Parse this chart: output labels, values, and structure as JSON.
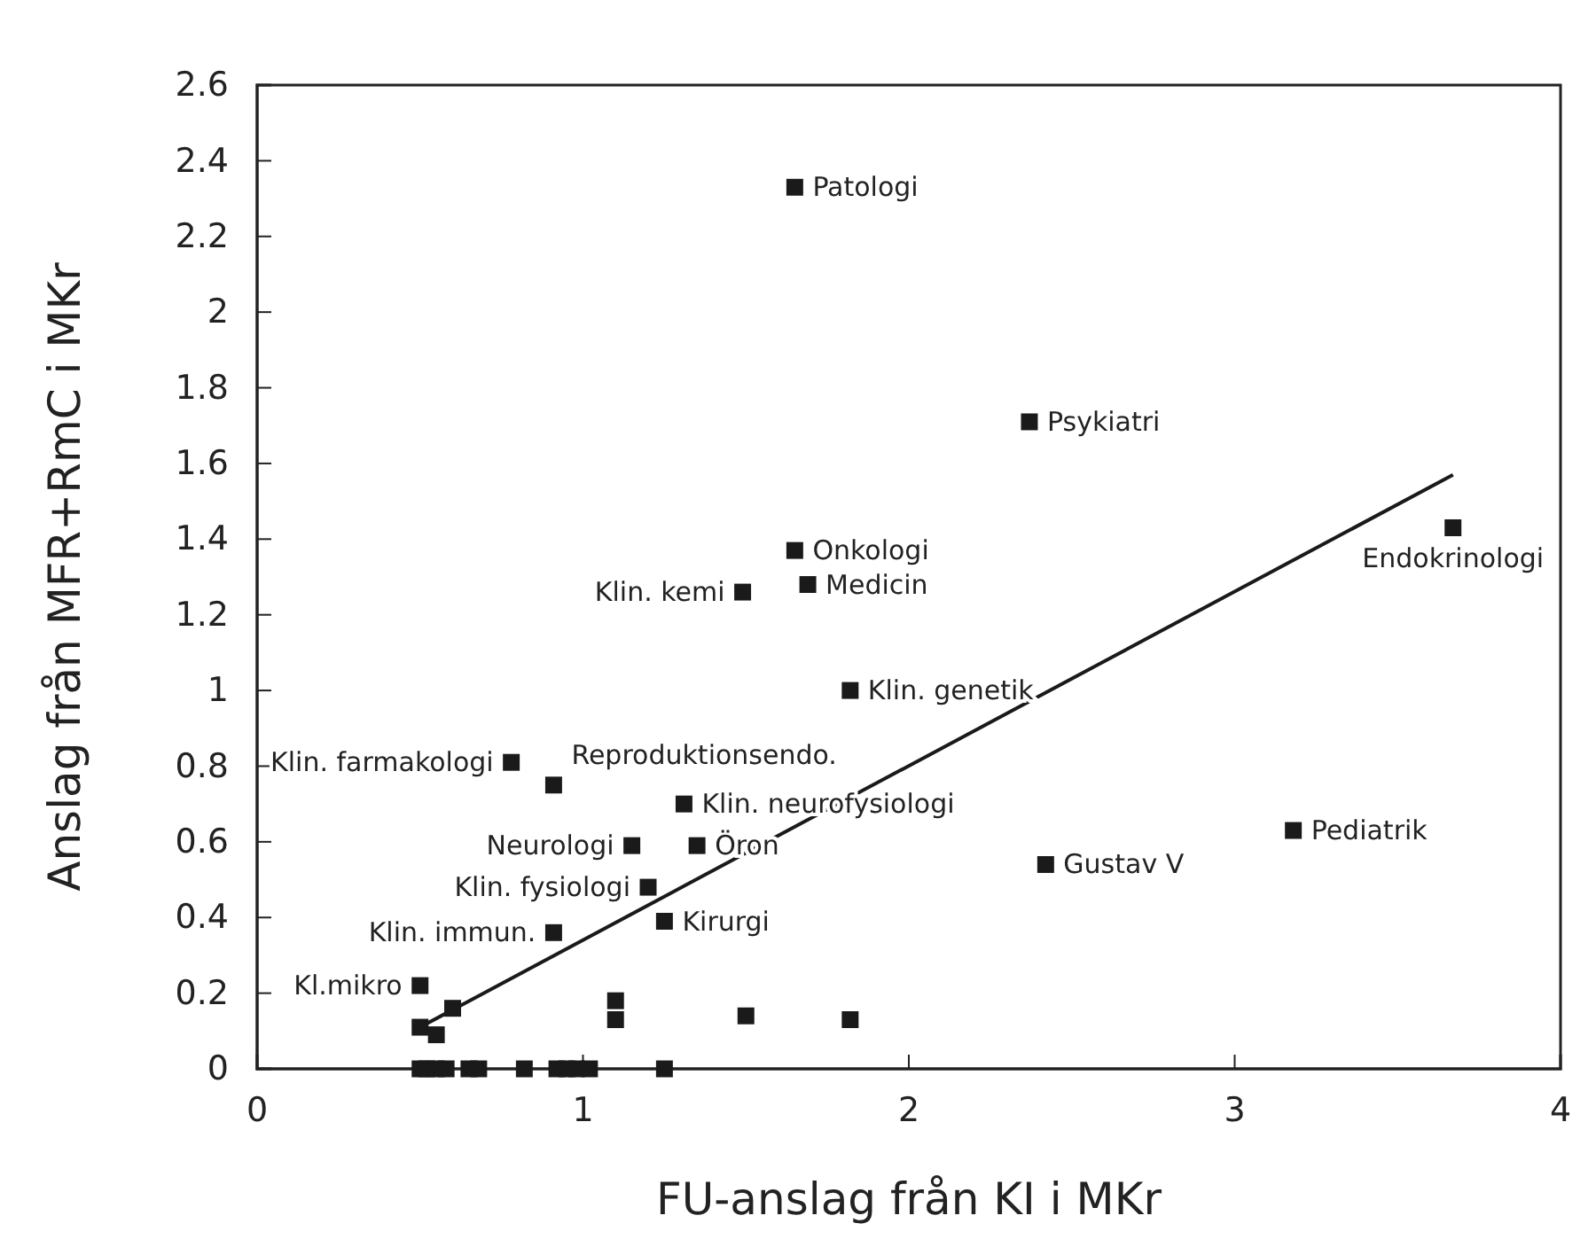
{
  "chart_data": {
    "type": "scatter",
    "xlabel": "FU-anslag från KI i MKr",
    "ylabel": "Anslag från MFR+RmC i MKr",
    "xlim": [
      0,
      4
    ],
    "xticks": [
      0,
      1,
      2,
      3,
      4
    ],
    "ylim": [
      0,
      2.6
    ],
    "yticks": [
      0,
      0.2,
      0.4,
      0.6,
      0.8,
      1,
      1.2,
      1.4,
      1.6,
      1.8,
      2,
      2.2,
      2.4,
      2.6
    ],
    "grid": false,
    "series": [
      {
        "marker": "square",
        "color": "#1a1a1a",
        "x": [
          1.65,
          2.37,
          3.67,
          3.18,
          2.42,
          1.65,
          1.69,
          1.49,
          1.82,
          0.78,
          0.91,
          1.31,
          1.15,
          1.35,
          1.2,
          1.25,
          0.91,
          0.5,
          0.5,
          0.55,
          0.6,
          1.1,
          1.1,
          1.5,
          1.82,
          0.5,
          0.52,
          0.55,
          0.58,
          0.65,
          0.68,
          0.82,
          0.92,
          0.95,
          0.98,
          1.02,
          1.25
        ],
        "values": [
          2.33,
          1.71,
          1.43,
          0.63,
          0.54,
          1.37,
          1.28,
          1.26,
          1.0,
          0.81,
          0.75,
          0.7,
          0.59,
          0.59,
          0.48,
          0.39,
          0.36,
          0.22,
          0.11,
          0.09,
          0.16,
          0.18,
          0.13,
          0.14,
          0.13,
          0,
          0,
          0,
          0,
          0,
          0,
          0,
          0,
          0,
          0,
          0,
          0
        ]
      },
      {
        "type": "line",
        "color": "#1a1a1a",
        "x": [
          0.5,
          3.67
        ],
        "values": [
          0.11,
          1.57
        ]
      }
    ],
    "annotations": [
      {
        "text": "Patologi",
        "x": 1.65,
        "y": 2.33
      },
      {
        "text": "Psykiatri",
        "x": 2.37,
        "y": 1.71
      },
      {
        "text": "Endokrinologi",
        "x": 3.67,
        "y": 1.43
      },
      {
        "text": "Pediatrik",
        "x": 3.18,
        "y": 0.63
      },
      {
        "text": "Gustav V",
        "x": 2.42,
        "y": 0.54
      },
      {
        "text": "Onkologi",
        "x": 1.65,
        "y": 1.37
      },
      {
        "text": "Medicin",
        "x": 1.69,
        "y": 1.28
      },
      {
        "text": "Klin. kemi",
        "x": 1.49,
        "y": 1.26
      },
      {
        "text": "Klin. genetik",
        "x": 1.82,
        "y": 1.0
      },
      {
        "text": "Klin. farmakologi",
        "x": 0.78,
        "y": 0.81
      },
      {
        "text": "Reproduktionsendo.",
        "x": 0.91,
        "y": 0.75
      },
      {
        "text": "Klin. neurofysiologi",
        "x": 1.31,
        "y": 0.7
      },
      {
        "text": "Neurologi",
        "x": 1.15,
        "y": 0.59
      },
      {
        "text": "Öron",
        "x": 1.35,
        "y": 0.59
      },
      {
        "text": "Klin. fysiologi",
        "x": 1.2,
        "y": 0.48
      },
      {
        "text": "Kirurgi",
        "x": 1.25,
        "y": 0.39
      },
      {
        "text": "Klin. immun.",
        "x": 0.91,
        "y": 0.36
      },
      {
        "text": "Kl.mikro",
        "x": 0.5,
        "y": 0.22
      }
    ]
  }
}
